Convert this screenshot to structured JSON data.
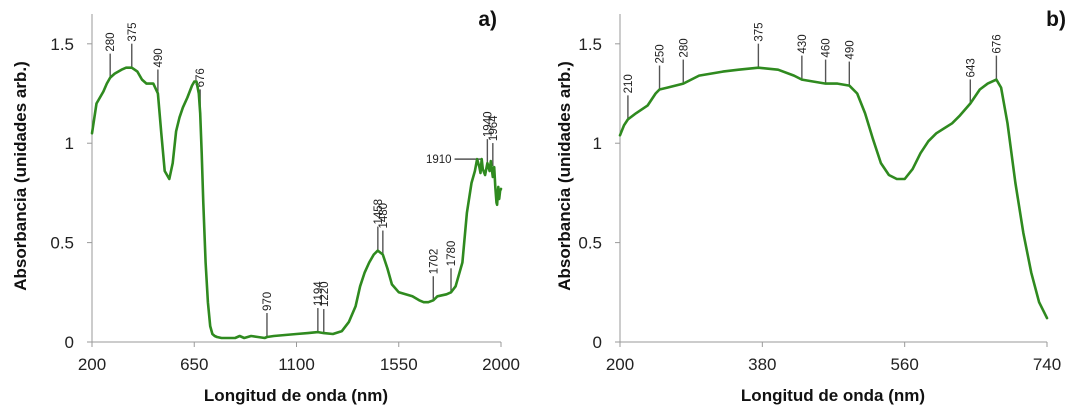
{
  "chart_data": [
    {
      "panel": "a)",
      "type": "line",
      "xlabel": "Longitud de onda (nm)",
      "ylabel": "Absorbancia (unidades arb.)",
      "xlim": [
        200,
        2000
      ],
      "ylim": [
        0,
        1.65
      ],
      "xticks": [
        200,
        650,
        1100,
        1550,
        2000
      ],
      "xtick_labels": [
        "200",
        "650",
        "1100",
        "1550",
        "2000"
      ],
      "yticks": [
        0,
        0.5,
        1,
        1.5
      ],
      "ytick_labels": [
        "0",
        "0.5",
        "1",
        "1.5"
      ],
      "series": [
        {
          "name": "absorbance",
          "color": "#2f8a1f",
          "x": [
            200,
            220,
            250,
            265,
            280,
            300,
            330,
            350,
            375,
            400,
            420,
            440,
            470,
            490,
            505,
            520,
            540,
            555,
            570,
            585,
            600,
            620,
            640,
            650,
            660,
            670,
            676,
            683,
            690,
            700,
            710,
            720,
            730,
            740,
            750,
            770,
            800,
            830,
            850,
            870,
            900,
            930,
            960,
            970,
            1000,
            1050,
            1100,
            1150,
            1194,
            1220,
            1260,
            1300,
            1330,
            1360,
            1380,
            1400,
            1420,
            1440,
            1458,
            1480,
            1500,
            1520,
            1550,
            1580,
            1610,
            1640,
            1660,
            1680,
            1702,
            1720,
            1760,
            1780,
            1800,
            1830,
            1850,
            1870,
            1885,
            1895,
            1905,
            1910,
            1915,
            1920,
            1930,
            1940,
            1950,
            1955,
            1964,
            1970,
            1975,
            1980,
            1983,
            1988,
            1992,
            1996,
            2000
          ],
          "y": [
            1.05,
            1.2,
            1.26,
            1.3,
            1.33,
            1.35,
            1.37,
            1.38,
            1.38,
            1.36,
            1.32,
            1.3,
            1.3,
            1.25,
            1.05,
            0.86,
            0.82,
            0.9,
            1.06,
            1.13,
            1.18,
            1.23,
            1.29,
            1.31,
            1.31,
            1.25,
            1.15,
            0.95,
            0.7,
            0.4,
            0.2,
            0.08,
            0.04,
            0.03,
            0.025,
            0.02,
            0.02,
            0.02,
            0.03,
            0.02,
            0.03,
            0.025,
            0.02,
            0.025,
            0.03,
            0.035,
            0.04,
            0.045,
            0.05,
            0.045,
            0.04,
            0.055,
            0.1,
            0.18,
            0.28,
            0.35,
            0.4,
            0.44,
            0.46,
            0.44,
            0.37,
            0.29,
            0.25,
            0.24,
            0.23,
            0.21,
            0.2,
            0.2,
            0.21,
            0.23,
            0.24,
            0.25,
            0.28,
            0.4,
            0.65,
            0.8,
            0.86,
            0.92,
            0.88,
            0.85,
            0.92,
            0.87,
            0.84,
            0.9,
            0.86,
            0.91,
            0.83,
            0.88,
            0.78,
            0.7,
            0.69,
            0.78,
            0.72,
            0.76,
            0.77
          ]
        }
      ],
      "annotations": [
        {
          "label": "280",
          "x": 280,
          "y": 1.33
        },
        {
          "label": "375",
          "x": 375,
          "y": 1.38
        },
        {
          "label": "490",
          "x": 490,
          "y": 1.25
        },
        {
          "label": "676",
          "x": 676,
          "y": 1.15
        },
        {
          "label": "970",
          "x": 970,
          "y": 0.025
        },
        {
          "label": "1194",
          "x": 1194,
          "y": 0.05
        },
        {
          "label": "1220",
          "x": 1220,
          "y": 0.045
        },
        {
          "label": "1458",
          "x": 1458,
          "y": 0.46
        },
        {
          "label": "1480",
          "x": 1480,
          "y": 0.44
        },
        {
          "label": "1702",
          "x": 1702,
          "y": 0.21
        },
        {
          "label": "1780",
          "x": 1780,
          "y": 0.25
        },
        {
          "label": "1910",
          "x": 1910,
          "y": 0.92,
          "side": "left"
        },
        {
          "label": "1940",
          "x": 1940,
          "y": 0.9
        },
        {
          "label": "1964",
          "x": 1964,
          "y": 0.88
        }
      ]
    },
    {
      "panel": "b)",
      "type": "line",
      "xlabel": "Longitud de onda (nm)",
      "ylabel": "Absorbancia (unidades arb.)",
      "xlim": [
        200,
        740
      ],
      "ylim": [
        0,
        1.65
      ],
      "xticks": [
        200,
        380,
        560,
        740
      ],
      "xtick_labels": [
        "200",
        "380",
        "560",
        "740"
      ],
      "yticks": [
        0,
        0.5,
        1,
        1.5
      ],
      "ytick_labels": [
        "0",
        "0.5",
        "1",
        "1.5"
      ],
      "series": [
        {
          "name": "absorbance",
          "color": "#2f8a1f",
          "x": [
            200,
            205,
            210,
            220,
            235,
            245,
            250,
            260,
            280,
            300,
            330,
            350,
            375,
            400,
            420,
            430,
            445,
            460,
            475,
            490,
            500,
            510,
            520,
            530,
            540,
            550,
            560,
            570,
            580,
            590,
            600,
            620,
            630,
            643,
            655,
            665,
            676,
            682,
            690,
            700,
            710,
            720,
            730,
            740
          ],
          "y": [
            1.04,
            1.09,
            1.12,
            1.15,
            1.19,
            1.25,
            1.27,
            1.28,
            1.3,
            1.34,
            1.36,
            1.37,
            1.38,
            1.37,
            1.34,
            1.32,
            1.31,
            1.3,
            1.3,
            1.29,
            1.25,
            1.15,
            1.02,
            0.9,
            0.84,
            0.82,
            0.82,
            0.87,
            0.95,
            1.01,
            1.05,
            1.1,
            1.14,
            1.2,
            1.27,
            1.3,
            1.32,
            1.28,
            1.1,
            0.8,
            0.55,
            0.35,
            0.2,
            0.12
          ]
        }
      ],
      "annotations": [
        {
          "label": "210",
          "x": 210,
          "y": 1.12
        },
        {
          "label": "250",
          "x": 250,
          "y": 1.27
        },
        {
          "label": "280",
          "x": 280,
          "y": 1.3
        },
        {
          "label": "375",
          "x": 375,
          "y": 1.38
        },
        {
          "label": "430",
          "x": 430,
          "y": 1.32
        },
        {
          "label": "460",
          "x": 460,
          "y": 1.3
        },
        {
          "label": "490",
          "x": 490,
          "y": 1.29
        },
        {
          "label": "643",
          "x": 643,
          "y": 1.2
        },
        {
          "label": "676",
          "x": 676,
          "y": 1.32
        }
      ]
    }
  ]
}
